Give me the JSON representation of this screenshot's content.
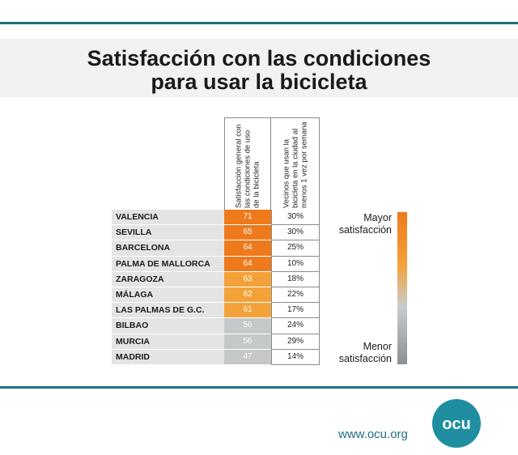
{
  "title_lines": [
    "Satisfacción con las condiciones",
    "para usar la bicicleta"
  ],
  "chart_data": {
    "type": "table",
    "columns": [
      "Satisfacción general con las condiciones de uso de la bicicleta",
      "Vecinos que usan la bicicleta en la ciudad al menos 1 vez por semana"
    ],
    "rows": [
      {
        "city": "VALENCIA",
        "score": 71,
        "weekly": "30%"
      },
      {
        "city": "SEVILLA",
        "score": 65,
        "weekly": "30%"
      },
      {
        "city": "BARCELONA",
        "score": 64,
        "weekly": "25%"
      },
      {
        "city": "PALMA DE MALLORCA",
        "score": 64,
        "weekly": "10%"
      },
      {
        "city": "ZARAGOZA",
        "score": 63,
        "weekly": "18%"
      },
      {
        "city": "MÁLAGA",
        "score": 62,
        "weekly": "22%"
      },
      {
        "city": "LAS PALMAS DE G.C.",
        "score": 61,
        "weekly": "17%"
      },
      {
        "city": "BILBAO",
        "score": 56,
        "weekly": "24%"
      },
      {
        "city": "MURCIA",
        "score": 56,
        "weekly": "29%"
      },
      {
        "city": "MADRID",
        "score": 47,
        "weekly": "14%"
      }
    ],
    "legend": {
      "top": "Mayor satisfacción",
      "bottom": "Menor satisfacción"
    },
    "colors": {
      "high": "#ee7a1c",
      "mid": "#f3a23a",
      "low": "#c4c8c9"
    }
  },
  "footer": {
    "url": "www.ocu.org",
    "logo_text": "ocu"
  },
  "colors": {
    "rule": "#1f6f80",
    "logo": "#1f8ea0"
  }
}
